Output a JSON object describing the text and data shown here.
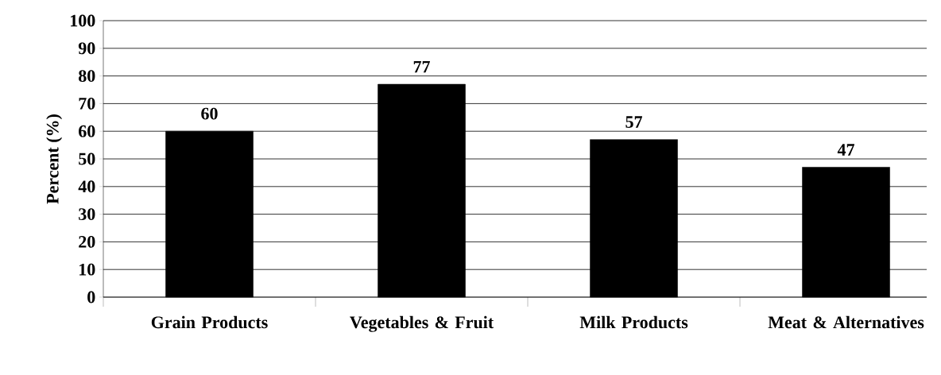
{
  "chart_data": {
    "type": "bar",
    "ylabel": "Percent (%)",
    "categories": [
      "Grain Products",
      "Vegetables & Fruit",
      "Milk Products",
      "Meat & Alternatives"
    ],
    "values": [
      60,
      77,
      57,
      47
    ],
    "color": "#000000",
    "value_labels": [
      "60",
      "77",
      "57",
      "47"
    ],
    "ylim": [
      0,
      100
    ],
    "yticks": [
      0,
      10,
      20,
      30,
      40,
      50,
      60,
      70,
      80,
      90,
      100
    ],
    "grid": "y"
  }
}
